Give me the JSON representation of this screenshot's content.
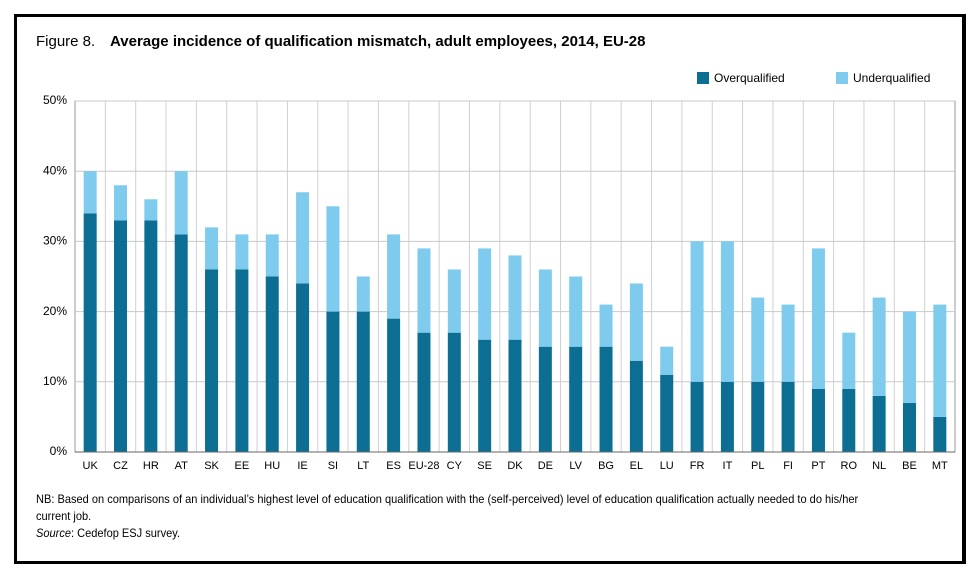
{
  "chart_data": {
    "type": "stacked_bar",
    "label": "Figure 8.",
    "title": "Average incidence of qualification mismatch, adult employees, 2014, EU-28",
    "categories": [
      "UK",
      "CZ",
      "HR",
      "AT",
      "SK",
      "EE",
      "HU",
      "IE",
      "SI",
      "LT",
      "ES",
      "EU-28",
      "CY",
      "SE",
      "DK",
      "DE",
      "LV",
      "BG",
      "EL",
      "LU",
      "FR",
      "IT",
      "PL",
      "FI",
      "PT",
      "RO",
      "NL",
      "BE",
      "MT"
    ],
    "series": [
      {
        "name": "Overqualified",
        "color": "#0b6e92",
        "values": [
          34,
          33,
          33,
          31,
          26,
          26,
          25,
          24,
          20,
          20,
          19,
          17,
          17,
          16,
          16,
          15,
          15,
          15,
          13,
          11,
          10,
          10,
          10,
          10,
          9,
          9,
          8,
          7,
          5
        ]
      },
      {
        "name": "Underqualified",
        "color": "#7ecbee",
        "values": [
          6,
          5,
          3,
          9,
          6,
          5,
          6,
          13,
          15,
          5,
          12,
          12,
          9,
          13,
          12,
          11,
          10,
          6,
          11,
          4,
          20,
          20,
          12,
          11,
          20,
          8,
          14,
          13,
          16
        ]
      }
    ],
    "ylim": [
      0,
      50
    ],
    "yticks": [
      {
        "value": 0,
        "label": "0%"
      },
      {
        "value": 10,
        "label": "10%"
      },
      {
        "value": 20,
        "label": "20%"
      },
      {
        "value": 30,
        "label": "30%"
      },
      {
        "value": 40,
        "label": "40%"
      },
      {
        "value": 50,
        "label": "50%"
      }
    ],
    "grid": true,
    "legend": "top-right",
    "note": "NB: Based on comparisons of an individual’s highest level of education qualification with the (self-perceived) level of education qualification actually needed to do his/her current job.",
    "source_label": "Source",
    "source": ": Cedefop ESJ survey."
  }
}
